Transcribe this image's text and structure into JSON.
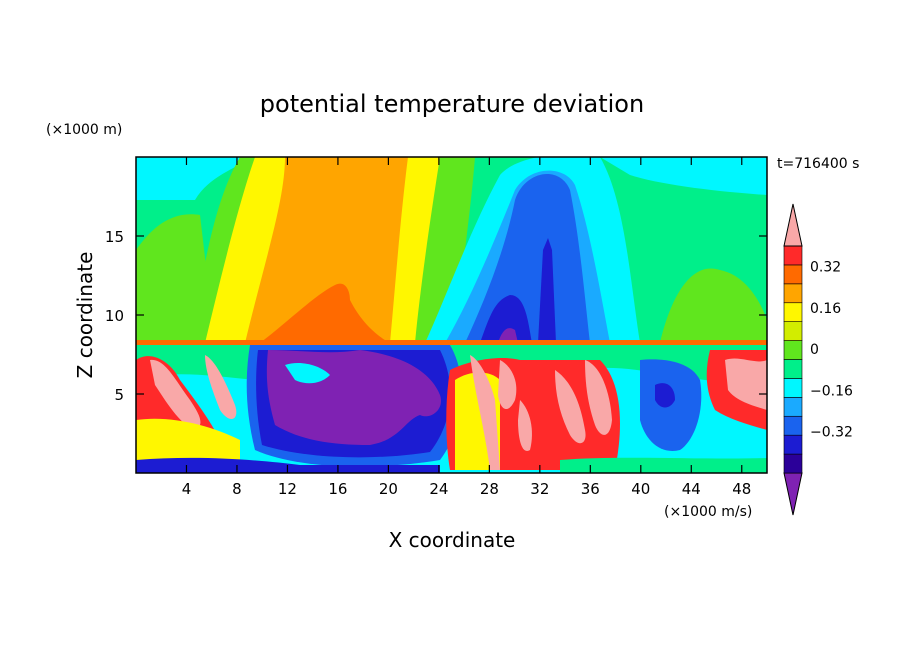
{
  "chart_data": {
    "type": "heatmap",
    "title": "potential temperature deviation",
    "xlabel": "X coordinate",
    "ylabel": "Z coordinate",
    "x_unit_label": "(×1000 m/s)",
    "y_unit_label": "(×1000 m)",
    "time_label": "t=716400 s",
    "xlim": [
      0,
      50
    ],
    "ylim": [
      0,
      20
    ],
    "x_ticks": [
      4,
      8,
      12,
      16,
      20,
      24,
      28,
      32,
      36,
      40,
      44,
      48
    ],
    "y_ticks": [
      5,
      10,
      15
    ],
    "colorbar": {
      "levels": [
        -0.48,
        -0.4,
        -0.32,
        -0.24,
        -0.16,
        -0.08,
        0,
        0.08,
        0.16,
        0.24,
        0.32,
        0.4
      ],
      "tick_labels": [
        "0.32",
        "0.16",
        "0",
        "−0.16",
        "−0.32"
      ],
      "tick_values": [
        0.32,
        0.16,
        0,
        -0.16,
        -0.32
      ],
      "colors": [
        "#7f22b3",
        "#2b0099",
        "#1c1cd2",
        "#1a63ee",
        "#1aaaff",
        "#00f7ff",
        "#00ef8a",
        "#60e61e",
        "#d2ed00",
        "#fff700",
        "#ffa500",
        "#ff6a00",
        "#ff2a2a",
        "#f9a8a8"
      ]
    },
    "field_regions": [
      {
        "name": "upper-background",
        "value": -0.06,
        "x": [
          0,
          50
        ],
        "z": [
          8.3,
          20
        ]
      },
      {
        "name": "warm-column-core",
        "value": 0.2,
        "x": [
          10,
          20.5
        ],
        "z": [
          8.3,
          20
        ]
      },
      {
        "name": "warm-column-edge",
        "value": 0.12,
        "x": [
          7,
          22
        ],
        "z": [
          8.3,
          20
        ]
      },
      {
        "name": "cold-plume-core",
        "value": -0.3,
        "x": [
          26,
          34
        ],
        "z": [
          8.3,
          18
        ]
      },
      {
        "name": "cold-plume-edge",
        "value": -0.2,
        "x": [
          24,
          38
        ],
        "z": [
          8.3,
          19
        ]
      },
      {
        "name": "lower-cold-pool",
        "value": -0.45,
        "x": [
          9.5,
          22
        ],
        "z": [
          1.5,
          7.5
        ]
      },
      {
        "name": "lower-warm-streaks",
        "value": 0.4,
        "x": [
          26,
          38
        ],
        "z": [
          0,
          8
        ]
      },
      {
        "name": "lower-left-warm",
        "value": 0.38,
        "x": [
          0,
          8
        ],
        "z": [
          1,
          8
        ]
      }
    ]
  }
}
